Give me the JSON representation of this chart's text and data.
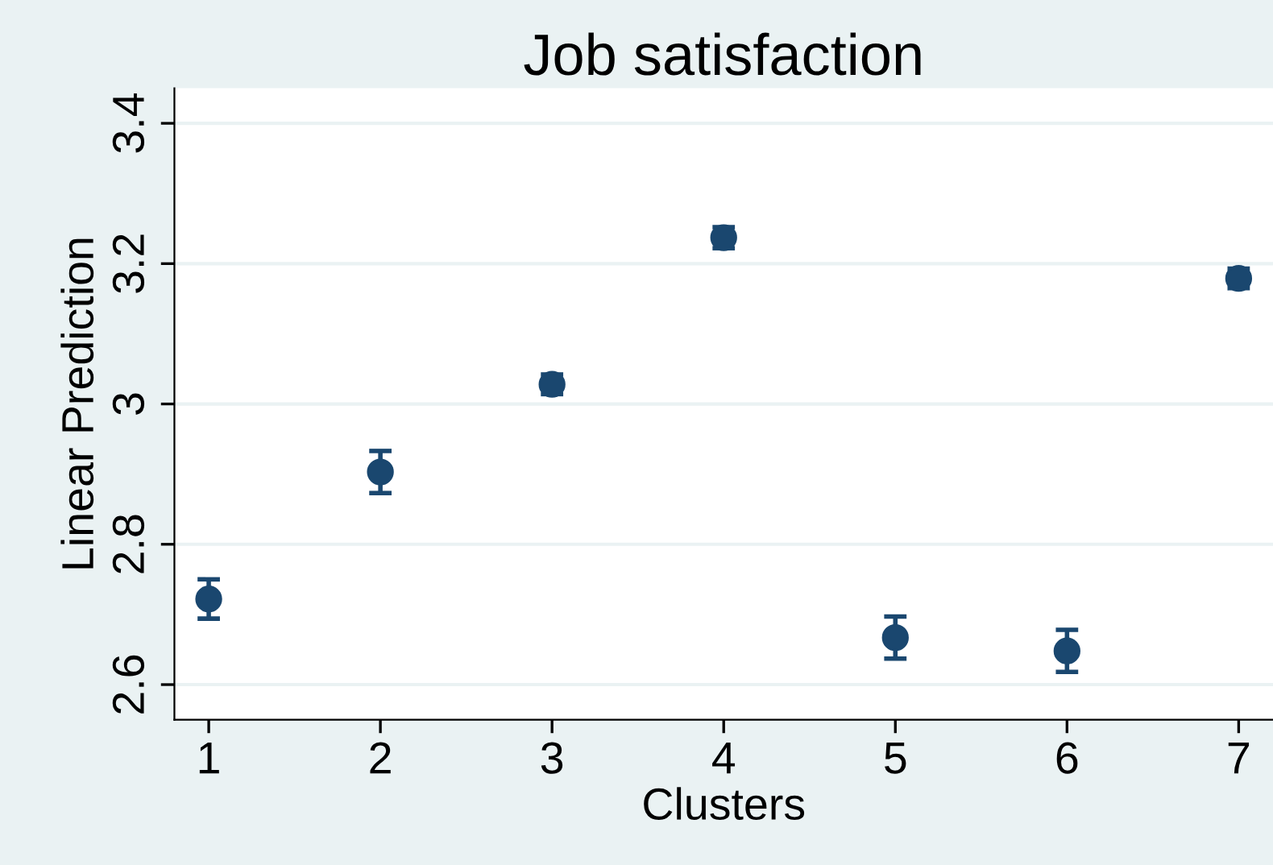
{
  "chart_data": {
    "type": "scatter",
    "title": "Job satisfaction",
    "xlabel": "Clusters",
    "ylabel": "Linear Prediction",
    "x": [
      1,
      2,
      3,
      4,
      5,
      6,
      7
    ],
    "series": [
      {
        "color": "#1a476f",
        "values": [
          2.722,
          2.903,
          3.028,
          3.237,
          2.667,
          2.648,
          3.179
        ],
        "errors": [
          0.028,
          0.03,
          0.014,
          0.015,
          0.03,
          0.03,
          0.014
        ]
      }
    ],
    "xlim": [
      0.8,
      7.2
    ],
    "ylim": [
      2.55,
      3.45
    ],
    "xticks": [
      1,
      2,
      3,
      4,
      5,
      6,
      7
    ],
    "yticks": [
      2.6,
      2.8,
      3,
      3.2,
      3.4
    ],
    "grid": "y",
    "legend": false,
    "marker": "circle"
  }
}
